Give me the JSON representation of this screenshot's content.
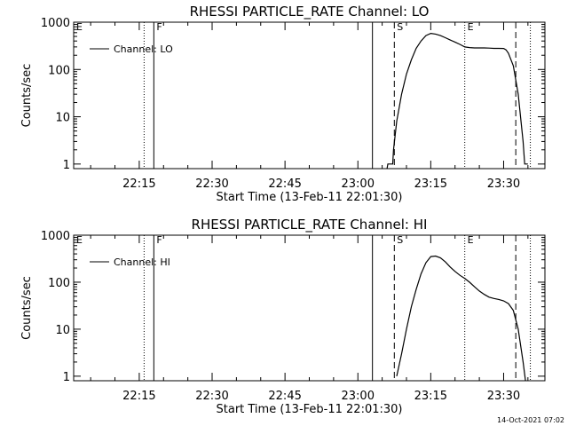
{
  "footer": {
    "timestamp": "14-Oct-2021 07:02"
  },
  "chart_data": [
    {
      "type": "line",
      "title": "RHESSI PARTICLE_RATE Channel: LO",
      "xlabel": "Start Time (13-Feb-11 22:01:30)",
      "ylabel": "Counts/sec",
      "yscale": "log",
      "ylim": [
        0.8,
        1000
      ],
      "xlim": [
        "22:01:30",
        "23:38:30"
      ],
      "xticks": [
        "22:15",
        "22:30",
        "22:45",
        "23:00",
        "23:15",
        "23:30"
      ],
      "yticks": [
        "1",
        "10",
        "100",
        "1000"
      ],
      "legend": {
        "position": "top-left",
        "entries": [
          "Channel: LO"
        ]
      },
      "markers": [
        {
          "time": "22:01:30",
          "style": "dashed",
          "label": "E"
        },
        {
          "time": "22:16:00",
          "style": "dotted",
          "label": ""
        },
        {
          "time": "22:18:00",
          "style": "solid",
          "label": "F"
        },
        {
          "time": "23:03:00",
          "style": "solid",
          "label": ""
        },
        {
          "time": "23:07:30",
          "style": "dashed",
          "label": "S"
        },
        {
          "time": "23:22:00",
          "style": "dotted",
          "label": "E"
        },
        {
          "time": "23:32:30",
          "style": "dashed",
          "label": ""
        },
        {
          "time": "23:35:30",
          "style": "dotted",
          "label": ""
        }
      ],
      "series": [
        {
          "x": [
            "23:06:00",
            "23:06:10",
            "23:07:10",
            "23:07:20",
            "23:08:00",
            "23:09:00",
            "23:10:00",
            "23:11:00",
            "23:12:00",
            "23:13:00",
            "23:14:00",
            "23:15:00",
            "23:16:00",
            "23:17:00",
            "23:18:00",
            "23:19:00",
            "23:20:00",
            "23:21:00",
            "23:22:00",
            "23:23:00",
            "23:24:00",
            "23:25:00",
            "23:26:00",
            "23:27:00",
            "23:28:00",
            "23:29:00",
            "23:30:00",
            "23:30:30",
            "23:31:00",
            "23:32:00",
            "23:33:00",
            "23:34:00",
            "23:34:20",
            "23:35:00"
          ],
          "y": [
            0.8,
            1,
            1,
            2,
            8,
            30,
            80,
            160,
            280,
            400,
            520,
            580,
            560,
            520,
            470,
            420,
            380,
            340,
            300,
            290,
            285,
            285,
            285,
            283,
            280,
            280,
            278,
            260,
            220,
            120,
            30,
            3,
            1,
            1
          ]
        }
      ]
    },
    {
      "type": "line",
      "title": "RHESSI PARTICLE_RATE Channel: HI",
      "xlabel": "Start Time (13-Feb-11 22:01:30)",
      "ylabel": "Counts/sec",
      "yscale": "log",
      "ylim": [
        0.8,
        1000
      ],
      "xlim": [
        "22:01:30",
        "23:38:30"
      ],
      "xticks": [
        "22:15",
        "22:30",
        "22:45",
        "23:00",
        "23:15",
        "23:30"
      ],
      "yticks": [
        "1",
        "10",
        "100",
        "1000"
      ],
      "legend": {
        "position": "top-left",
        "entries": [
          "Channel: HI"
        ]
      },
      "markers": [
        {
          "time": "22:01:30",
          "style": "dashed",
          "label": "E"
        },
        {
          "time": "22:16:00",
          "style": "dotted",
          "label": ""
        },
        {
          "time": "22:18:00",
          "style": "solid",
          "label": "F"
        },
        {
          "time": "23:03:00",
          "style": "solid",
          "label": ""
        },
        {
          "time": "23:07:30",
          "style": "dashed",
          "label": "S"
        },
        {
          "time": "23:22:00",
          "style": "dotted",
          "label": "E"
        },
        {
          "time": "23:32:30",
          "style": "dashed",
          "label": ""
        },
        {
          "time": "23:35:30",
          "style": "dotted",
          "label": ""
        }
      ],
      "series": [
        {
          "x": [
            "23:08:00",
            "23:09:00",
            "23:10:00",
            "23:11:00",
            "23:12:00",
            "23:13:00",
            "23:14:00",
            "23:15:00",
            "23:16:00",
            "23:17:00",
            "23:18:00",
            "23:19:00",
            "23:20:00",
            "23:21:00",
            "23:22:00",
            "23:23:00",
            "23:24:00",
            "23:25:00",
            "23:26:00",
            "23:27:00",
            "23:28:00",
            "23:29:00",
            "23:30:00",
            "23:31:00",
            "23:32:00",
            "23:33:00",
            "23:34:00",
            "23:34:30"
          ],
          "y": [
            1,
            3,
            10,
            30,
            70,
            150,
            260,
            350,
            360,
            330,
            270,
            210,
            170,
            140,
            120,
            100,
            80,
            65,
            55,
            48,
            45,
            43,
            40,
            35,
            25,
            10,
            2,
            0.8
          ]
        }
      ]
    }
  ]
}
